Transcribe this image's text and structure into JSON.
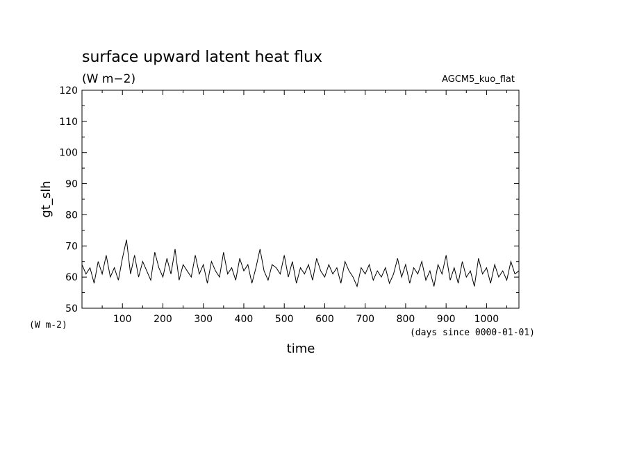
{
  "chart_data": {
    "type": "line",
    "title": "surface upward latent heat flux",
    "units": "(W m−2)",
    "experiment": "AGCM5_kuo_flat",
    "ylabel": "gt_slh",
    "yunit_note": "(W m-2)",
    "xlabel": "time",
    "xunit_note": "(days since 0000-01-01)",
    "xlim": [
      0,
      1080
    ],
    "ylim": [
      50,
      120
    ],
    "x_ticks": [
      "100",
      "200",
      "300",
      "400",
      "500",
      "600",
      "700",
      "800",
      "900",
      "1000"
    ],
    "y_ticks": [
      "50",
      "60",
      "70",
      "80",
      "90",
      "100",
      "110",
      "120"
    ],
    "grid": false,
    "series": [
      {
        "x": [
          0,
          10,
          20,
          30,
          40,
          50,
          60,
          70,
          80,
          90,
          100,
          110,
          120,
          130,
          140,
          150,
          160,
          170,
          180,
          190,
          200,
          210,
          220,
          230,
          240,
          250,
          260,
          270,
          280,
          290,
          300,
          310,
          320,
          330,
          340,
          350,
          360,
          370,
          380,
          390,
          400,
          410,
          420,
          430,
          440,
          450,
          460,
          470,
          480,
          490,
          500,
          510,
          520,
          530,
          540,
          550,
          560,
          570,
          580,
          590,
          600,
          610,
          620,
          630,
          640,
          650,
          660,
          670,
          680,
          690,
          700,
          710,
          720,
          730,
          740,
          750,
          760,
          770,
          780,
          790,
          800,
          810,
          820,
          830,
          840,
          850,
          860,
          870,
          880,
          890,
          900,
          910,
          920,
          930,
          940,
          950,
          960,
          970,
          980,
          990,
          1000,
          1010,
          1020,
          1030,
          1040,
          1050,
          1060,
          1070,
          1080
        ],
        "y": [
          64,
          61,
          63,
          58,
          65,
          61,
          67,
          60,
          63,
          59,
          66,
          72,
          61,
          67,
          60,
          65,
          62,
          59,
          68,
          63,
          60,
          66,
          61,
          69,
          59,
          64,
          62,
          60,
          67,
          61,
          64,
          58,
          65,
          62,
          60,
          68,
          61,
          63,
          59,
          66,
          62,
          64,
          58,
          63,
          69,
          62,
          59,
          64,
          63,
          61,
          67,
          60,
          65,
          58,
          63,
          61,
          64,
          59,
          66,
          62,
          60,
          64,
          61,
          63,
          58,
          65,
          62,
          60,
          57,
          63,
          61,
          64,
          59,
          62,
          60,
          63,
          58,
          61,
          66,
          60,
          64,
          58,
          63,
          61,
          65,
          59,
          62,
          57,
          64,
          61,
          67,
          59,
          63,
          58,
          65,
          60,
          62,
          57,
          66,
          61,
          63,
          58,
          64,
          60,
          62,
          59,
          65,
          61,
          62
        ]
      }
    ]
  }
}
